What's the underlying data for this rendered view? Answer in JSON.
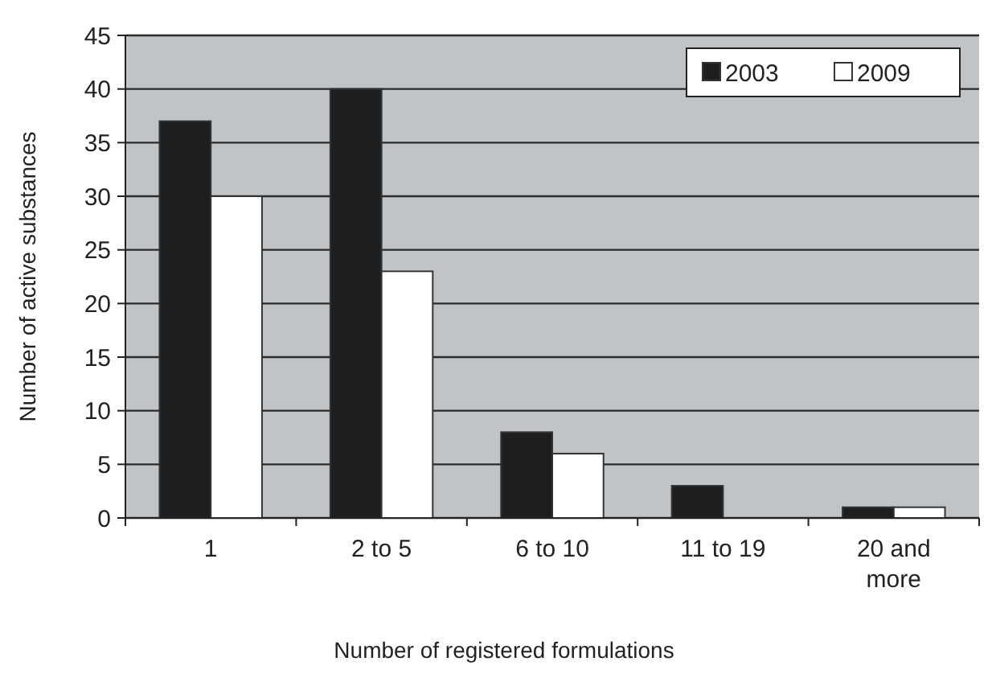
{
  "chart_data": {
    "type": "bar",
    "xlabel": "Number of registered formulations",
    "ylabel": "Number of active substances",
    "categories": [
      "1",
      "2 to 5",
      "6 to 10",
      "11 to 19",
      "20 and more"
    ],
    "series": [
      {
        "name": "2003",
        "color": "#1d1e20",
        "values": [
          37,
          40,
          8,
          3,
          1
        ]
      },
      {
        "name": "2009",
        "color": "#ffffff",
        "values": [
          30,
          23,
          6,
          0,
          1
        ]
      }
    ],
    "ylim": [
      0,
      45
    ],
    "yticks": [
      0,
      5,
      10,
      15,
      20,
      25,
      30,
      35,
      40,
      45
    ],
    "grid": "y",
    "legend": "top right"
  }
}
